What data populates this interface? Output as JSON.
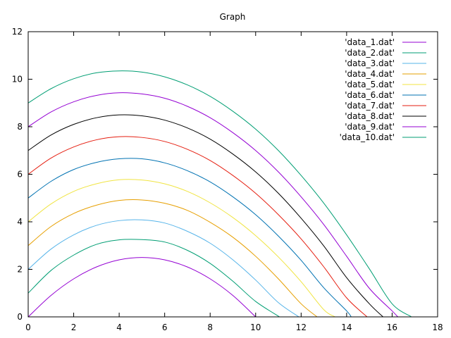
{
  "chart_data": {
    "type": "line",
    "title": "Graph",
    "xlabel": "",
    "ylabel": "",
    "xlim": [
      0,
      18
    ],
    "ylim": [
      0,
      12
    ],
    "xticks": [
      0,
      2,
      4,
      6,
      8,
      10,
      12,
      14,
      16,
      18
    ],
    "yticks": [
      0,
      2,
      4,
      6,
      8,
      10,
      12
    ],
    "legend_position": "top-right",
    "series": [
      {
        "name": "'data_1.dat'",
        "color": "#9400d3",
        "x": [
          0,
          1,
          2,
          3,
          4,
          5,
          6,
          7,
          8,
          9,
          10
        ],
        "y": [
          0.0,
          0.9,
          1.6,
          2.1,
          2.4,
          2.5,
          2.4,
          2.1,
          1.6,
          0.9,
          0.0
        ]
      },
      {
        "name": "'data_2.dat'",
        "color": "#009e73",
        "x": [
          0,
          1,
          2,
          3,
          4,
          5,
          6,
          7,
          8,
          9,
          10,
          11.05
        ],
        "y": [
          1.0,
          1.95,
          2.6,
          3.05,
          3.24,
          3.25,
          3.15,
          2.8,
          2.25,
          1.5,
          0.65,
          0.0
        ]
      },
      {
        "name": "'data_3.dat'",
        "color": "#56b4e9",
        "x": [
          0,
          1,
          2,
          3,
          4,
          5,
          6,
          7,
          8,
          9,
          10,
          11,
          11.9
        ],
        "y": [
          2.0,
          2.85,
          3.45,
          3.85,
          4.05,
          4.08,
          3.95,
          3.6,
          3.1,
          2.4,
          1.55,
          0.6,
          0.0
        ]
      },
      {
        "name": "'data_4.dat'",
        "color": "#e69f00",
        "x": [
          0,
          1,
          2,
          3,
          4,
          5,
          6,
          7,
          8,
          9,
          10,
          11,
          12,
          12.7
        ],
        "y": [
          3.0,
          3.8,
          4.35,
          4.7,
          4.9,
          4.92,
          4.78,
          4.48,
          3.98,
          3.35,
          2.55,
          1.6,
          0.55,
          0.0
        ]
      },
      {
        "name": "'data_5.dat'",
        "color": "#f0e442",
        "x": [
          0,
          1,
          2,
          3,
          4,
          5,
          6,
          7,
          8,
          9,
          10,
          11,
          12,
          13,
          13.5
        ],
        "y": [
          4.0,
          4.75,
          5.28,
          5.6,
          5.77,
          5.76,
          5.6,
          5.28,
          4.8,
          4.18,
          3.42,
          2.52,
          1.48,
          0.3,
          0.0
        ]
      },
      {
        "name": "'data_6.dat'",
        "color": "#0072b2",
        "x": [
          0,
          1,
          2,
          3,
          4,
          5,
          6,
          7,
          8,
          9,
          10,
          11,
          12,
          13,
          14,
          14.2
        ],
        "y": [
          5.0,
          5.7,
          6.2,
          6.5,
          6.65,
          6.65,
          6.48,
          6.15,
          5.68,
          5.05,
          4.3,
          3.4,
          2.38,
          1.22,
          0.25,
          0.0
        ]
      },
      {
        "name": "'data_7.dat'",
        "color": "#e51e10",
        "x": [
          0,
          1,
          2,
          3,
          4,
          5,
          6,
          7,
          8,
          9,
          10,
          11,
          12,
          13,
          14,
          14.9
        ],
        "y": [
          6.0,
          6.68,
          7.15,
          7.45,
          7.58,
          7.55,
          7.38,
          7.05,
          6.58,
          5.95,
          5.2,
          4.3,
          3.28,
          2.1,
          0.8,
          0.0
        ]
      },
      {
        "name": "'data_8.dat'",
        "color": "#000000",
        "x": [
          0,
          1,
          2,
          3,
          4,
          5,
          6,
          7,
          8,
          9,
          10,
          11,
          12,
          13,
          14,
          15,
          15.6
        ],
        "y": [
          7.0,
          7.65,
          8.1,
          8.38,
          8.5,
          8.46,
          8.28,
          7.95,
          7.48,
          6.85,
          6.1,
          5.2,
          4.15,
          2.98,
          1.65,
          0.55,
          0.0
        ]
      },
      {
        "name": "'data_9.dat'",
        "color": "#9400d3",
        "x": [
          0,
          1,
          2,
          3,
          4,
          5,
          6,
          7,
          8,
          9,
          10,
          11,
          12,
          13,
          14,
          15,
          16,
          16.25
        ],
        "y": [
          8.0,
          8.62,
          9.05,
          9.32,
          9.43,
          9.38,
          9.2,
          8.86,
          8.38,
          7.75,
          7.0,
          6.1,
          5.05,
          3.88,
          2.55,
          1.2,
          0.25,
          0.0
        ]
      },
      {
        "name": "'data_10.dat'",
        "color": "#009e73",
        "x": [
          0,
          1,
          2,
          3,
          4,
          5,
          6,
          7,
          8,
          9,
          10,
          11,
          12,
          13,
          14,
          15,
          16,
          16.85
        ],
        "y": [
          9.0,
          9.6,
          10.02,
          10.27,
          10.35,
          10.3,
          10.1,
          9.76,
          9.28,
          8.65,
          7.9,
          7.0,
          5.95,
          4.78,
          3.45,
          2.02,
          0.55,
          0.0
        ]
      }
    ]
  }
}
